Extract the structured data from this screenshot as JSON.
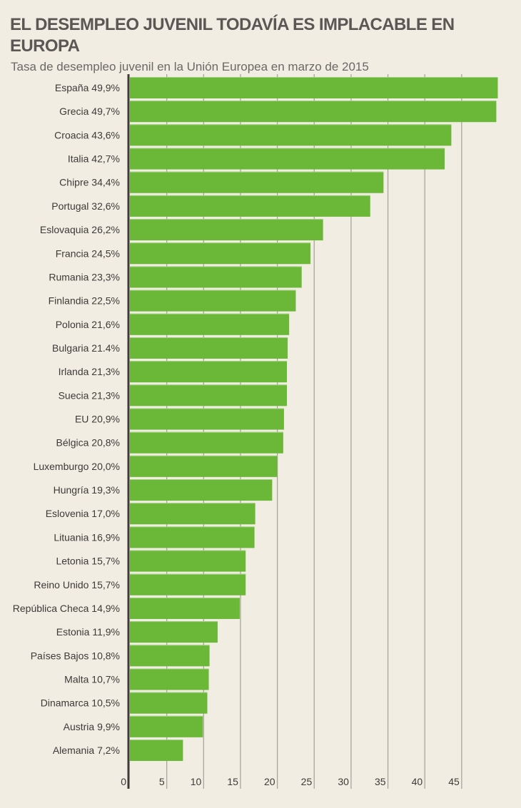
{
  "chart_data": {
    "type": "bar",
    "orientation": "horizontal",
    "title": "EL DESEMPLEO JUVENIL TODAVÍA ES IMPLACABLE EN EUROPA",
    "subtitle": "Tasa de desempleo juvenil en la Unión Europea en marzo de 2015",
    "xlabel": "",
    "ylabel": "",
    "xlim": [
      0,
      50
    ],
    "xticks": [
      0,
      5,
      10,
      15,
      20,
      25,
      30,
      35,
      40,
      45
    ],
    "grid": true,
    "bar_color": "#6bb738",
    "background_color": "#f1ede2",
    "categories": [
      "España 49,9%",
      "Grecia 49,7%",
      "Croacia 43,6%",
      "Italia 42,7%",
      "Chipre 34,4%",
      "Portugal 32,6%",
      "Eslovaquia 26,2%",
      "Francia 24,5%",
      "Rumania 23,3%",
      "Finlandia 22,5%",
      "Polonia 21,6%",
      "Bulgaria 21.4%",
      "Irlanda 21,3%",
      "Suecia 21,3%",
      "EU 20,9%",
      "Bélgica 20,8%",
      "Luxemburgo 20,0%",
      "Hungría 19,3%",
      "Eslovenia 17,0%",
      "Lituania 16,9%",
      "Letonia 15,7%",
      "Reino Unido 15,7%",
      "República Checa 14,9%",
      "Estonia 11,9%",
      "Países Bajos 10,8%",
      "Malta 10,7%",
      "Dinamarca 10,5%",
      "Austria 9,9%",
      "Alemania 7,2%"
    ],
    "values": [
      49.9,
      49.7,
      43.6,
      42.7,
      34.4,
      32.6,
      26.2,
      24.5,
      23.3,
      22.5,
      21.6,
      21.4,
      21.3,
      21.3,
      20.9,
      20.8,
      20.0,
      19.3,
      17.0,
      16.9,
      15.7,
      15.7,
      14.9,
      11.9,
      10.8,
      10.7,
      10.5,
      9.9,
      7.2
    ]
  }
}
